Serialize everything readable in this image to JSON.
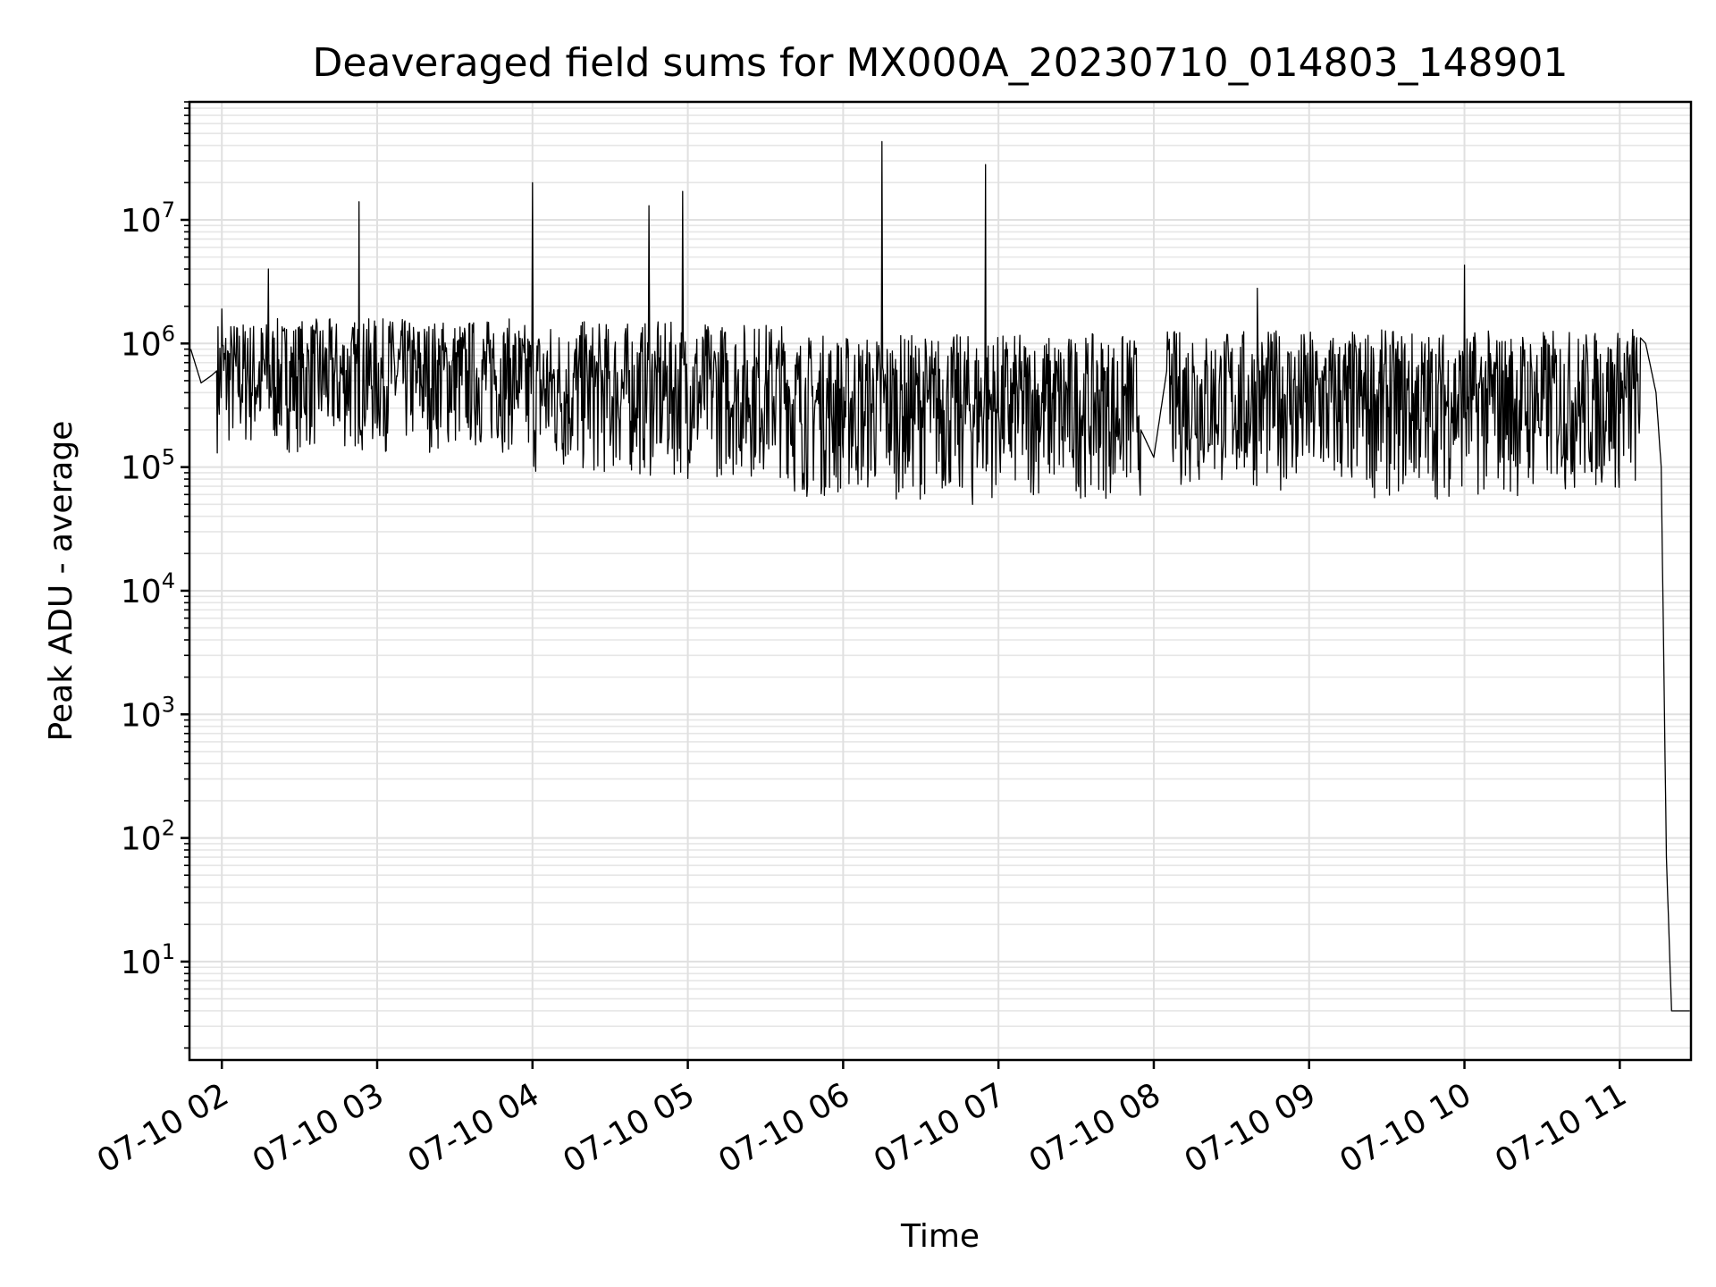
{
  "chart_data": {
    "type": "line",
    "title": "Deaveraged field sums for MX000A_20230710_014803_148901",
    "xlabel": "Time",
    "ylabel": "Peak ADU - average",
    "yscale": "log",
    "ylim": [
      1.6,
      90000000
    ],
    "xlim": [
      "2023-07-10 01:47:30",
      "2023-07-10 11:27:30"
    ],
    "x_ticks": [
      "07-10 02",
      "07-10 03",
      "07-10 04",
      "07-10 05",
      "07-10 06",
      "07-10 07",
      "07-10 08",
      "07-10 09",
      "07-10 10",
      "07-10 11"
    ],
    "y_ticks": [
      {
        "base": "10",
        "exp": "1",
        "value": 10
      },
      {
        "base": "10",
        "exp": "2",
        "value": 100
      },
      {
        "base": "10",
        "exp": "3",
        "value": 1000
      },
      {
        "base": "10",
        "exp": "4",
        "value": 10000
      },
      {
        "base": "10",
        "exp": "5",
        "value": 100000
      },
      {
        "base": "10",
        "exp": "6",
        "value": 1000000
      },
      {
        "base": "10",
        "exp": "7",
        "value": 10000000
      }
    ],
    "grid": true,
    "series": [
      {
        "color": "#000000",
        "x": [
          "2023-07-10 01:48",
          "2023-07-10 01:52",
          "2023-07-10 01:56",
          "2023-07-10 01:58",
          "2023-07-10 02:00",
          "2023-07-10 02:04",
          "2023-07-10 02:10",
          "2023-07-10 02:15",
          "2023-07-10 02:18",
          "2023-07-10 02:25",
          "2023-07-10 02:35",
          "2023-07-10 02:45",
          "2023-07-10 02:53",
          "2023-07-10 02:56",
          "2023-07-10 03:05",
          "2023-07-10 03:15",
          "2023-07-10 03:25",
          "2023-07-10 03:35",
          "2023-07-10 03:45",
          "2023-07-10 03:55",
          "2023-07-10 04:00",
          "2023-07-10 04:10",
          "2023-07-10 04:20",
          "2023-07-10 04:30",
          "2023-07-10 04:40",
          "2023-07-10 04:45",
          "2023-07-10 04:50",
          "2023-07-10 04:58",
          "2023-07-10 05:05",
          "2023-07-10 05:10",
          "2023-07-10 05:20",
          "2023-07-10 05:30",
          "2023-07-10 05:40",
          "2023-07-10 05:50",
          "2023-07-10 06:00",
          "2023-07-10 06:08",
          "2023-07-10 06:15",
          "2023-07-10 06:25",
          "2023-07-10 06:35",
          "2023-07-10 06:45",
          "2023-07-10 06:50",
          "2023-07-10 06:55",
          "2023-07-10 07:05",
          "2023-07-10 07:15",
          "2023-07-10 07:25",
          "2023-07-10 07:35",
          "2023-07-10 07:45",
          "2023-07-10 07:55",
          "2023-07-10 08:00",
          "2023-07-10 08:05",
          "2023-07-10 08:15",
          "2023-07-10 08:25",
          "2023-07-10 08:35",
          "2023-07-10 08:40",
          "2023-07-10 08:45",
          "2023-07-10 08:55",
          "2023-07-10 09:05",
          "2023-07-10 09:15",
          "2023-07-10 09:25",
          "2023-07-10 09:35",
          "2023-07-10 09:45",
          "2023-07-10 09:55",
          "2023-07-10 10:00",
          "2023-07-10 10:05",
          "2023-07-10 10:15",
          "2023-07-10 10:25",
          "2023-07-10 10:35",
          "2023-07-10 10:45",
          "2023-07-10 10:50",
          "2023-07-10 10:55",
          "2023-07-10 11:00",
          "2023-07-10 11:05",
          "2023-07-10 11:10",
          "2023-07-10 11:14",
          "2023-07-10 11:16",
          "2023-07-10 11:18",
          "2023-07-10 11:20",
          "2023-07-10 11:21",
          "2023-07-10 11:22",
          "2023-07-10 11:23",
          "2023-07-10 11:24",
          "2023-07-10 11:27"
        ],
        "y": [
          900000,
          480000,
          550000,
          600000,
          1900000,
          900000,
          1100000,
          300000,
          4000000,
          1300000,
          1400000,
          250000,
          14000000,
          1300000,
          1500000,
          400000,
          1300000,
          600000,
          1200000,
          400000,
          20000000,
          400000,
          1500000,
          150000,
          300000,
          13000000,
          200000,
          17000000,
          250000,
          700000,
          150000,
          500000,
          150000,
          350000,
          120000,
          200000,
          43000000,
          100000,
          250000,
          70000,
          50000,
          28000000,
          120000,
          200000,
          100000,
          150000,
          90000,
          200000,
          120000,
          600000,
          1000000,
          200000,
          100000,
          2800000,
          400000,
          90000,
          600000,
          100000,
          700000,
          150000,
          120000,
          400000,
          4300000,
          300000,
          600000,
          200000,
          900000,
          300000,
          350000,
          700000,
          1100000,
          1300000,
          1000000,
          400000,
          100000,
          70,
          4,
          4,
          4,
          4,
          4,
          4
        ]
      }
    ],
    "noise_band": [
      {
        "from": "2023-07-10 01:58",
        "to": "2023-07-10 03:55",
        "low": 130000,
        "high": 1600000
      },
      {
        "from": "2023-07-10 03:55",
        "to": "2023-07-10 05:40",
        "low": 80000,
        "high": 1500000
      },
      {
        "from": "2023-07-10 05:40",
        "to": "2023-07-10 07:55",
        "low": 55000,
        "high": 1200000
      },
      {
        "from": "2023-07-10 08:05",
        "to": "2023-07-10 08:55",
        "low": 65000,
        "high": 1300000
      },
      {
        "from": "2023-07-10 08:55",
        "to": "2023-07-10 10:30",
        "low": 55000,
        "high": 1300000
      },
      {
        "from": "2023-07-10 10:30",
        "to": "2023-07-10 11:08",
        "low": 60000,
        "high": 1300000
      }
    ]
  }
}
